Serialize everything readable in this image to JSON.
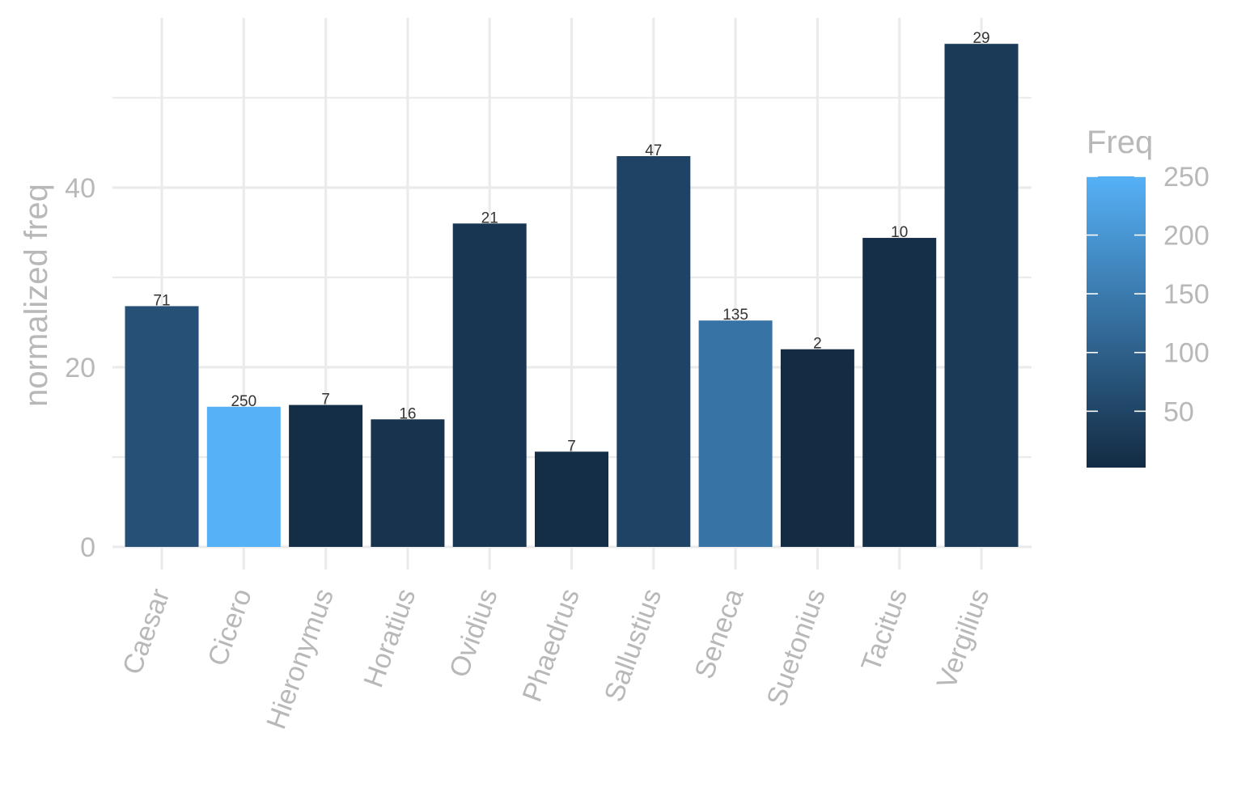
{
  "chart_data": {
    "type": "bar",
    "title": "",
    "xlabel": "",
    "ylabel": "normalized freq",
    "categories": [
      "Caesar",
      "Cicero",
      "Hieronymus",
      "Horatius",
      "Ovidius",
      "Phaedrus",
      "Sallustius",
      "Seneca",
      "Suetonius",
      "Tacitus",
      "Vergilius"
    ],
    "values": [
      26.8,
      15.6,
      15.8,
      14.2,
      36.0,
      10.6,
      43.5,
      25.2,
      22.0,
      34.4,
      56.0
    ],
    "bar_labels": [
      "71",
      "250",
      "7",
      "16",
      "21",
      "7",
      "47",
      "135",
      "2",
      "10",
      "29"
    ],
    "fill_values": [
      71,
      250,
      7,
      16,
      21,
      7,
      47,
      135,
      2,
      10,
      29
    ],
    "ylim": [
      0,
      58.9
    ],
    "yticks": [
      0,
      20,
      40
    ],
    "grid": true,
    "legend": {
      "title": "Freq",
      "position": "right",
      "range": [
        2,
        250
      ],
      "ticks": [
        50,
        100,
        150,
        200,
        250
      ],
      "tick_labels": [
        "50",
        "100",
        "150",
        "200",
        "250"
      ],
      "color_low": "#132B43",
      "color_high": "#56B1F7"
    }
  }
}
